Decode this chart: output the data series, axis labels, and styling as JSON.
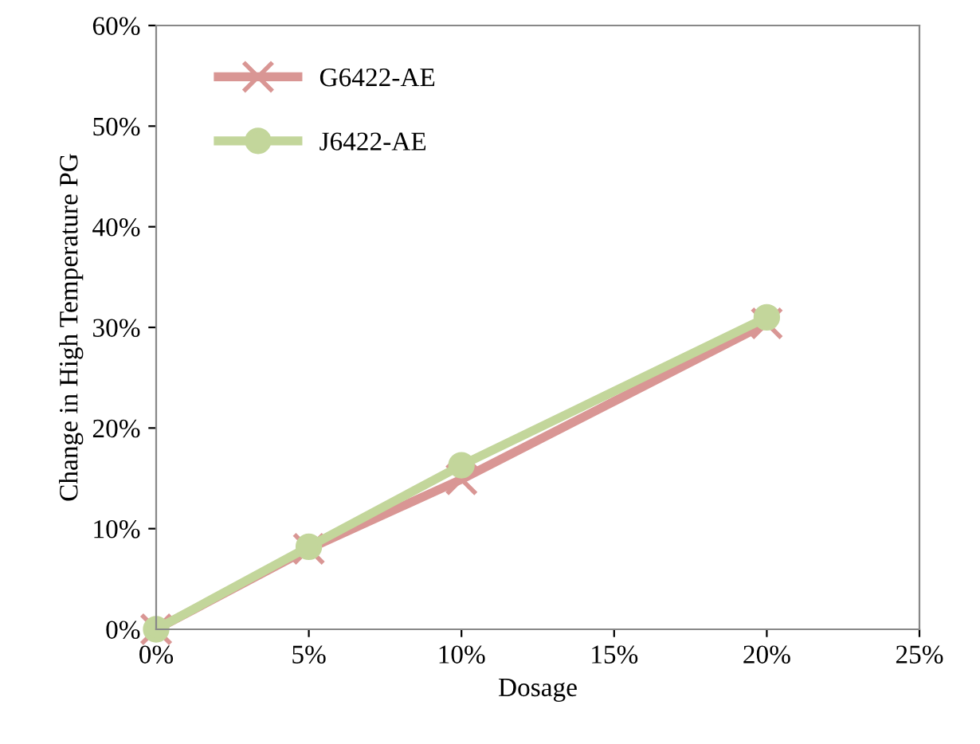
{
  "chart_data": {
    "type": "line",
    "xlabel": "Dosage",
    "ylabel": "Change in High Temperature PG",
    "x": [
      0,
      5,
      10,
      20
    ],
    "series": [
      {
        "name": "G6422-AE",
        "color": "#d99694",
        "values": [
          0,
          8,
          14.9,
          30.4
        ],
        "marker": "cross"
      },
      {
        "name": "J6422-AE",
        "color": "#c3d69b",
        "values": [
          0,
          8.2,
          16.3,
          31.0
        ],
        "marker": "circle"
      }
    ],
    "xlim": [
      0,
      25
    ],
    "xticks": [
      {
        "value": 0,
        "label": "0%"
      },
      {
        "value": 5,
        "label": "5%"
      },
      {
        "value": 10,
        "label": "10%"
      },
      {
        "value": 15,
        "label": "15%"
      },
      {
        "value": 20,
        "label": "20%"
      },
      {
        "value": 25,
        "label": "25%"
      }
    ],
    "ylim": [
      0,
      60
    ],
    "yticks": [
      {
        "value": 0,
        "label": "0%"
      },
      {
        "value": 10,
        "label": "10%"
      },
      {
        "value": 20,
        "label": "20%"
      },
      {
        "value": 30,
        "label": "30%"
      },
      {
        "value": 40,
        "label": "40%"
      },
      {
        "value": 50,
        "label": "50%"
      },
      {
        "value": 60,
        "label": "60%"
      }
    ],
    "grid": false,
    "legend": "top left",
    "line_style": "solid"
  }
}
